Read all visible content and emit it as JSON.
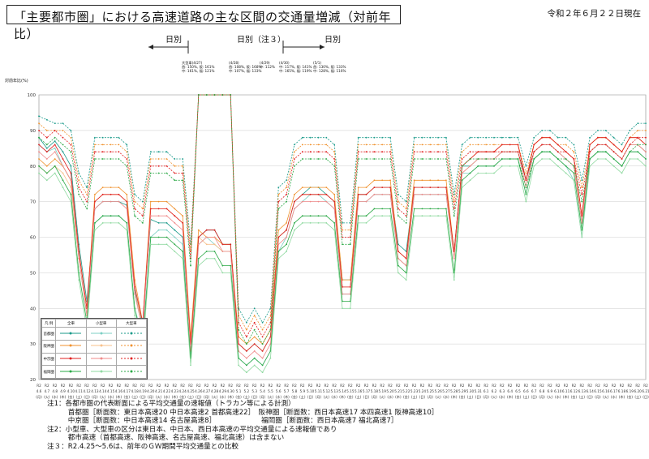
{
  "title": "「主要都市圏」における高速道路の主な区間の交通量増減（対前年比）",
  "date": "令和２年６月２２日現在",
  "periods": [
    "日別",
    "日別（注３）",
    "日別"
  ],
  "y_axis_label": "対前年比(%)",
  "legend": {
    "headers": [
      "凡 例",
      "全車",
      "小型車",
      "大型車"
    ],
    "rows": [
      "首都圏",
      "阪神圏",
      "中京圏",
      "福岡圏"
    ]
  },
  "annotations": [
    [
      "大型車(4/27)",
      "首: 150%, 阪: 161%",
      "中: 161%, 福: 121%"
    ],
    [
      "(4/28)",
      "首: 108%, 阪: 168%",
      "中: 107%, 福: 133%"
    ],
    [
      "(4/29)",
      "中: 112%"
    ],
    [
      "(4/30)",
      "中: 117%, 阪: 141%",
      "中: 165%, 福: 119%"
    ],
    [
      "(5/1)",
      "首: 130%, 阪: 133%",
      "中: 128%, 福: 116%"
    ]
  ],
  "notes": [
    "注1：各都市圏の代表断面による平均交通量の速報値（トラカン等による計測）",
    "　　　首都圏［断面数：東日本高速20 中日本高速2 首都高速22］　阪神圏［断面数：西日本高速17 本四高速1 阪神高速10］",
    "　　　中京圏［断面数：中日本高速14 名古屋高速8］　　　　　　　福岡圏［断面数：西日本高速7 福北高速7］",
    "注2：小型車、大型車の区分は東日本、中日本、西日本高速の平均交通量による速報値であり",
    "　　　都市高速（首都高速、阪神高速、名古屋高速、福北高速）は含まない",
    "注３：R2.4.25～5.6は、前年のＧＷ期間平均交通量との比較"
  ],
  "colors": {
    "首都圏": "#1a9a8a",
    "阪神圏": "#f0922e",
    "中京圏": "#e02020",
    "福岡圏": "#2aa845"
  },
  "chart_data": {
    "type": "line",
    "title": "「主要都市圏」における高速道路の主な区間の交通量増減（対前年比）",
    "ylabel": "対前年比(%)",
    "ylim": [
      20,
      100
    ],
    "yticks": [
      20,
      30,
      40,
      50,
      60,
      70,
      80,
      90,
      100
    ],
    "categories": [
      "4.6",
      "4.7",
      "4.8",
      "4.9",
      "4.10",
      "4.11",
      "4.12",
      "4.13",
      "4.14",
      "4.15",
      "4.16",
      "4.17",
      "4.18",
      "4.19",
      "4.20",
      "4.21",
      "4.22",
      "4.23",
      "4.24",
      "4.25",
      "4.26",
      "4.27",
      "4.28",
      "4.29",
      "4.30",
      "5.1",
      "5.2",
      "5.3",
      "5.4",
      "5.5",
      "5.6",
      "5.7",
      "5.8",
      "5.9",
      "5.10",
      "5.11",
      "5.12",
      "5.13",
      "5.14",
      "5.15",
      "5.16",
      "5.17",
      "5.18",
      "5.19",
      "5.20",
      "5.21",
      "5.22",
      "5.23",
      "5.24",
      "5.25",
      "5.26",
      "5.27",
      "5.28",
      "5.29",
      "5.30",
      "5.31",
      "6.1",
      "6.2",
      "6.3",
      "6.4",
      "6.5",
      "6.6",
      "6.7",
      "6.8",
      "6.9",
      "6.10",
      "6.11",
      "6.12",
      "6.13",
      "6.14",
      "6.15",
      "6.16",
      "6.17",
      "6.18",
      "6.19",
      "6.20",
      "6.21"
    ],
    "weekdays": [
      "月",
      "火",
      "水",
      "木",
      "金",
      "土",
      "日",
      "月",
      "火",
      "水",
      "木",
      "金",
      "土",
      "日",
      "月",
      "火",
      "水",
      "木",
      "金",
      "土",
      "日",
      "月",
      "火",
      "水",
      "木",
      "金",
      "土",
      "日",
      "月",
      "火",
      "水",
      "木",
      "金",
      "土",
      "日",
      "月",
      "火",
      "水",
      "木",
      "金",
      "土",
      "日",
      "月",
      "火",
      "水",
      "木",
      "金",
      "土",
      "日",
      "月",
      "火",
      "水",
      "木",
      "金",
      "土",
      "日",
      "月",
      "火",
      "水",
      "木",
      "金",
      "土",
      "日",
      "月",
      "火",
      "水",
      "木",
      "金",
      "土",
      "日",
      "月",
      "火",
      "水",
      "木",
      "金",
      "土",
      "日"
    ],
    "series": [
      {
        "name": "首都圏 全車",
        "values": [
          88,
          85,
          87,
          84,
          80,
          58,
          42,
          68,
          70,
          70,
          70,
          69,
          45,
          35,
          65,
          64,
          64,
          62,
          60,
          30,
          60,
          62,
          62,
          58,
          58,
          30,
          28,
          30,
          28,
          32,
          60,
          62,
          70,
          72,
          74,
          74,
          72,
          70,
          48,
          48,
          72,
          72,
          74,
          74,
          74,
          58,
          56,
          74,
          74,
          74,
          74,
          74,
          56,
          80,
          80,
          82,
          82,
          82,
          84,
          84,
          84,
          76,
          84,
          86,
          86,
          84,
          82,
          80,
          64,
          84,
          86,
          86,
          84,
          82,
          86,
          86,
          84
        ]
      },
      {
        "name": "首都圏 小型車",
        "values": [
          86,
          84,
          85,
          80,
          76,
          54,
          38,
          64,
          66,
          66,
          66,
          64,
          40,
          32,
          60,
          62,
          62,
          60,
          58,
          26,
          58,
          60,
          58,
          56,
          56,
          26,
          24,
          26,
          24,
          28,
          56,
          60,
          68,
          70,
          72,
          72,
          70,
          68,
          44,
          44,
          70,
          70,
          72,
          72,
          72,
          54,
          52,
          72,
          72,
          72,
          72,
          72,
          54,
          78,
          78,
          80,
          80,
          80,
          82,
          82,
          82,
          72,
          82,
          84,
          84,
          82,
          80,
          76,
          60,
          82,
          84,
          84,
          82,
          80,
          84,
          84,
          82
        ]
      },
      {
        "name": "首都圏 大型車",
        "values": [
          94,
          93,
          92,
          92,
          90,
          78,
          74,
          88,
          88,
          88,
          88,
          86,
          72,
          70,
          84,
          84,
          84,
          82,
          82,
          58,
          100,
          100,
          100,
          100,
          100,
          40,
          36,
          40,
          36,
          40,
          74,
          76,
          86,
          88,
          88,
          88,
          88,
          86,
          64,
          64,
          88,
          88,
          88,
          88,
          88,
          72,
          70,
          88,
          88,
          88,
          88,
          88,
          72,
          86,
          88,
          88,
          88,
          88,
          88,
          88,
          88,
          80,
          88,
          90,
          90,
          88,
          88,
          86,
          76,
          88,
          90,
          90,
          88,
          86,
          90,
          92,
          92
        ]
      },
      {
        "name": "阪神圏 全車",
        "values": [
          82,
          80,
          82,
          80,
          76,
          56,
          40,
          72,
          74,
          74,
          74,
          72,
          48,
          36,
          70,
          70,
          70,
          68,
          66,
          32,
          62,
          60,
          60,
          58,
          58,
          32,
          30,
          32,
          30,
          34,
          62,
          64,
          72,
          74,
          74,
          74,
          74,
          72,
          48,
          48,
          74,
          74,
          76,
          76,
          76,
          56,
          54,
          76,
          76,
          76,
          76,
          76,
          56,
          80,
          82,
          84,
          84,
          84,
          86,
          86,
          86,
          76,
          86,
          88,
          88,
          86,
          84,
          82,
          66,
          86,
          88,
          88,
          86,
          84,
          88,
          88,
          86
        ]
      },
      {
        "name": "阪神圏 小型車",
        "values": [
          80,
          78,
          80,
          78,
          74,
          54,
          38,
          70,
          72,
          72,
          72,
          70,
          46,
          34,
          68,
          68,
          68,
          66,
          64,
          30,
          60,
          58,
          58,
          56,
          56,
          30,
          28,
          30,
          28,
          32,
          60,
          62,
          70,
          72,
          72,
          72,
          72,
          70,
          46,
          46,
          72,
          72,
          74,
          74,
          74,
          54,
          52,
          74,
          74,
          74,
          74,
          74,
          54,
          78,
          80,
          82,
          82,
          82,
          84,
          84,
          84,
          74,
          84,
          86,
          86,
          84,
          82,
          80,
          64,
          84,
          86,
          86,
          84,
          82,
          86,
          86,
          84
        ]
      },
      {
        "name": "阪神圏 大型車",
        "values": [
          92,
          90,
          90,
          90,
          88,
          76,
          72,
          86,
          86,
          86,
          86,
          84,
          70,
          68,
          82,
          82,
          82,
          80,
          80,
          56,
          100,
          100,
          100,
          100,
          100,
          38,
          34,
          38,
          34,
          38,
          72,
          74,
          84,
          86,
          86,
          86,
          86,
          84,
          62,
          62,
          86,
          86,
          86,
          86,
          86,
          70,
          68,
          86,
          86,
          86,
          86,
          86,
          70,
          84,
          86,
          86,
          86,
          86,
          86,
          86,
          86,
          78,
          86,
          88,
          88,
          86,
          86,
          84,
          74,
          86,
          88,
          88,
          86,
          84,
          88,
          90,
          90
        ]
      },
      {
        "name": "中京圏 全車",
        "values": [
          86,
          84,
          86,
          82,
          78,
          56,
          40,
          70,
          72,
          72,
          72,
          70,
          46,
          36,
          68,
          68,
          68,
          66,
          64,
          30,
          60,
          62,
          62,
          58,
          58,
          30,
          28,
          30,
          28,
          32,
          60,
          62,
          70,
          72,
          72,
          72,
          72,
          70,
          46,
          46,
          72,
          72,
          74,
          74,
          74,
          56,
          54,
          74,
          74,
          74,
          74,
          74,
          56,
          80,
          82,
          84,
          84,
          84,
          86,
          86,
          86,
          76,
          86,
          88,
          88,
          86,
          84,
          82,
          66,
          86,
          88,
          88,
          86,
          84,
          88,
          88,
          86
        ]
      },
      {
        "name": "中京圏 小型車",
        "values": [
          84,
          82,
          84,
          80,
          76,
          54,
          38,
          68,
          70,
          70,
          70,
          68,
          44,
          34,
          66,
          66,
          66,
          64,
          62,
          28,
          58,
          60,
          60,
          56,
          56,
          28,
          26,
          28,
          26,
          30,
          58,
          60,
          68,
          70,
          70,
          70,
          70,
          68,
          44,
          44,
          70,
          70,
          72,
          72,
          72,
          54,
          52,
          72,
          72,
          72,
          72,
          72,
          54,
          78,
          80,
          82,
          82,
          82,
          84,
          84,
          84,
          74,
          84,
          86,
          86,
          84,
          82,
          80,
          64,
          84,
          86,
          86,
          84,
          82,
          86,
          86,
          84
        ]
      },
      {
        "name": "中京圏 大型車",
        "values": [
          90,
          88,
          90,
          88,
          86,
          74,
          70,
          84,
          84,
          84,
          84,
          82,
          68,
          66,
          80,
          80,
          80,
          78,
          78,
          54,
          100,
          100,
          100,
          100,
          100,
          36,
          32,
          36,
          32,
          36,
          70,
          72,
          82,
          84,
          84,
          84,
          84,
          82,
          60,
          60,
          84,
          84,
          84,
          84,
          84,
          68,
          66,
          84,
          84,
          84,
          84,
          84,
          68,
          82,
          84,
          84,
          84,
          84,
          84,
          84,
          84,
          76,
          84,
          86,
          86,
          84,
          84,
          82,
          72,
          84,
          86,
          86,
          84,
          82,
          86,
          88,
          88
        ]
      },
      {
        "name": "福岡圏 全車",
        "values": [
          80,
          78,
          80,
          76,
          72,
          50,
          36,
          64,
          66,
          66,
          66,
          64,
          40,
          30,
          60,
          60,
          60,
          58,
          56,
          26,
          54,
          56,
          56,
          52,
          52,
          26,
          24,
          26,
          24,
          28,
          56,
          58,
          64,
          66,
          66,
          66,
          66,
          64,
          42,
          42,
          66,
          66,
          68,
          68,
          68,
          52,
          50,
          68,
          68,
          68,
          68,
          68,
          50,
          76,
          78,
          80,
          80,
          80,
          82,
          82,
          82,
          72,
          82,
          84,
          84,
          82,
          80,
          78,
          62,
          82,
          84,
          84,
          82,
          80,
          84,
          84,
          82
        ]
      },
      {
        "name": "福岡圏 小型車",
        "values": [
          78,
          76,
          78,
          74,
          70,
          48,
          34,
          62,
          64,
          64,
          64,
          62,
          38,
          28,
          58,
          58,
          58,
          56,
          54,
          24,
          52,
          54,
          54,
          50,
          50,
          24,
          22,
          24,
          22,
          26,
          54,
          56,
          62,
          64,
          64,
          64,
          64,
          62,
          40,
          40,
          64,
          64,
          66,
          66,
          66,
          50,
          48,
          66,
          66,
          66,
          66,
          66,
          48,
          74,
          76,
          78,
          78,
          78,
          80,
          80,
          80,
          70,
          80,
          82,
          82,
          80,
          78,
          76,
          60,
          80,
          82,
          82,
          80,
          78,
          82,
          82,
          80
        ]
      },
      {
        "name": "福岡圏 大型車",
        "values": [
          88,
          86,
          88,
          86,
          84,
          72,
          68,
          82,
          82,
          82,
          82,
          80,
          66,
          64,
          78,
          78,
          78,
          76,
          76,
          52,
          100,
          100,
          100,
          100,
          100,
          34,
          30,
          34,
          30,
          34,
          68,
          70,
          80,
          82,
          82,
          82,
          82,
          80,
          58,
          58,
          82,
          82,
          82,
          82,
          82,
          66,
          64,
          82,
          82,
          82,
          82,
          82,
          66,
          80,
          82,
          82,
          82,
          82,
          82,
          82,
          82,
          74,
          82,
          84,
          84,
          82,
          82,
          80,
          70,
          82,
          84,
          84,
          82,
          80,
          84,
          86,
          86
        ]
      }
    ]
  }
}
